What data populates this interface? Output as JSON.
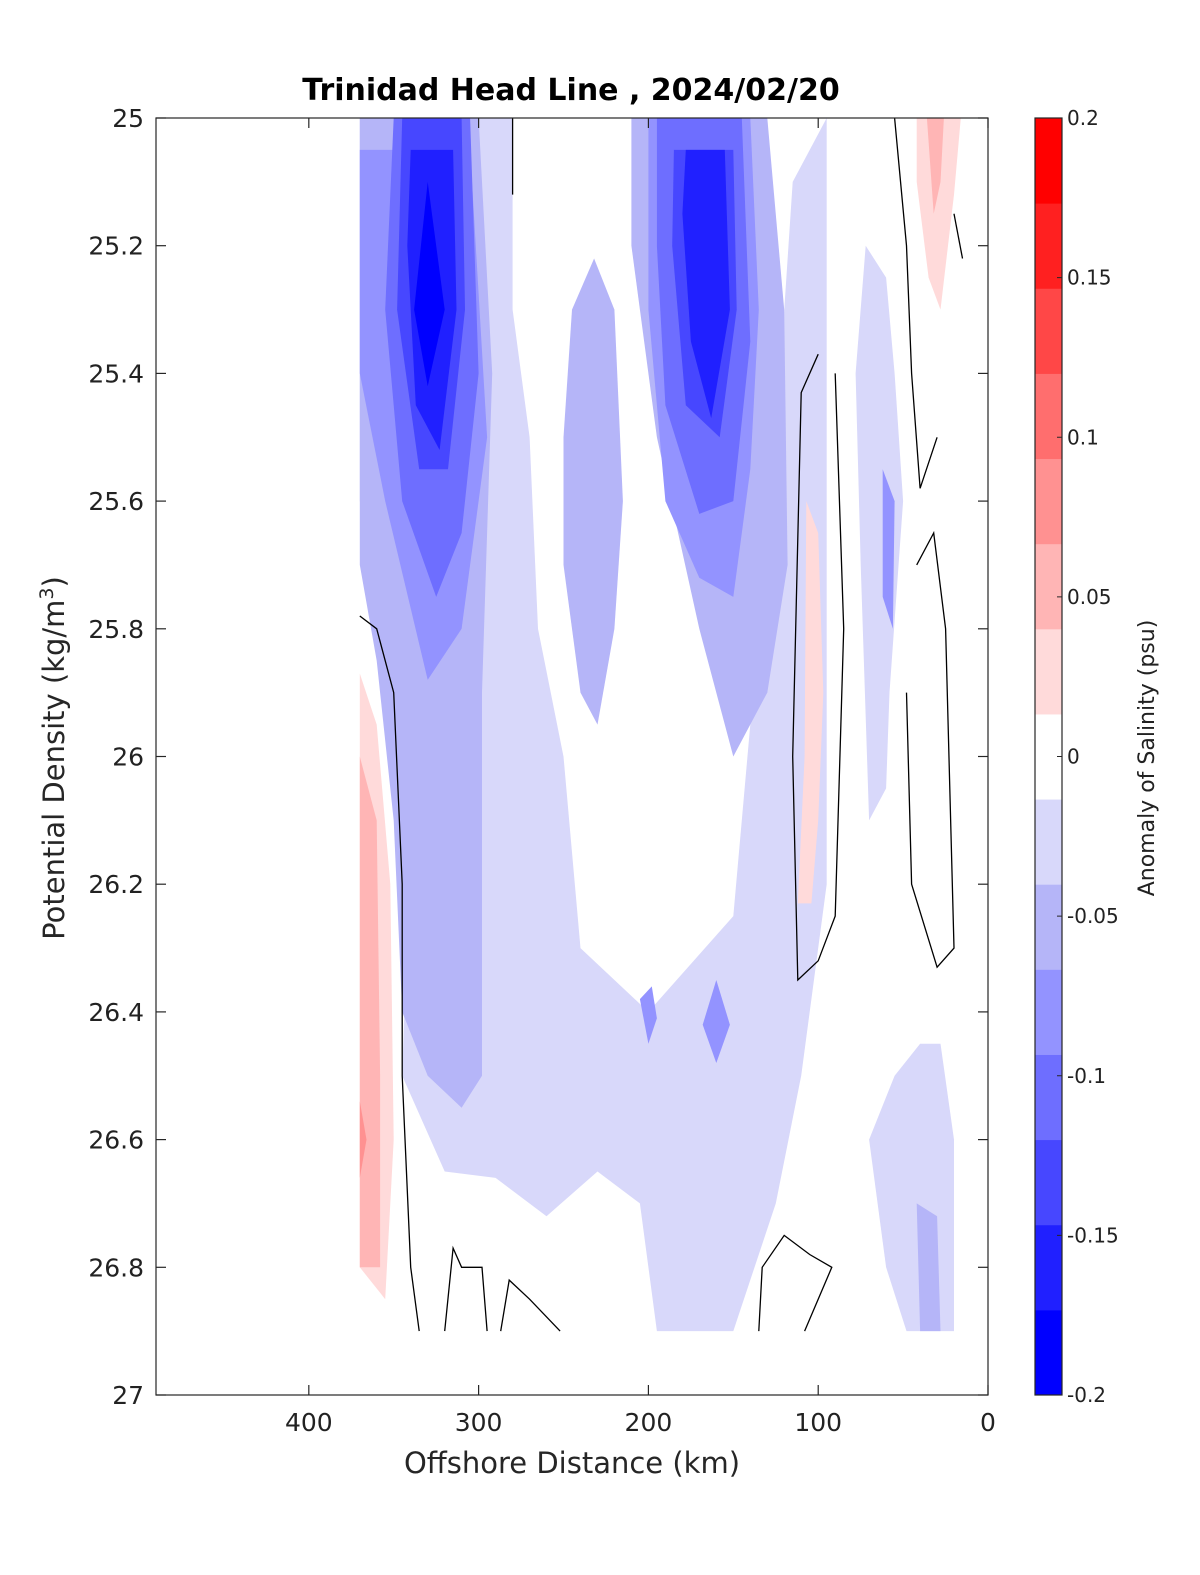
{
  "chart_data": {
    "type": "contour",
    "title": "Trinidad Head Line , 2024/02/20",
    "xlabel": "Offshore Distance (km)",
    "ylabel": "Potential Density (kg/m³)",
    "ylabel_main": "Potential Density (kg/m",
    "ylabel_sup": "3",
    "ylabel_close": ")",
    "xlim": [
      490,
      0
    ],
    "ylim": [
      25,
      27
    ],
    "y_reversed": true,
    "x_reversed": true,
    "xticks": [
      400,
      300,
      200,
      100,
      0
    ],
    "xtick_labels": [
      "400",
      "300",
      "200",
      "100",
      "0"
    ],
    "yticks": [
      25,
      25.2,
      25.4,
      25.6,
      25.8,
      26,
      26.2,
      26.4,
      26.6,
      26.8,
      27
    ],
    "ytick_labels": [
      "25",
      "25.2",
      "25.4",
      "25.6",
      "25.8",
      "26",
      "26.2",
      "26.4",
      "26.6",
      "26.8",
      "27"
    ],
    "colorbar": {
      "label": "Anomaly of Salinity (psu)",
      "range": [
        -0.2,
        0.2
      ],
      "ticks": [
        -0.2,
        -0.15,
        -0.1,
        -0.05,
        0,
        0.05,
        0.1,
        0.15,
        0.2
      ],
      "tick_labels": [
        "-0.2",
        "-0.15",
        "-0.1",
        "-0.05",
        "0",
        "0.05",
        "0.1",
        "0.15",
        "0.2"
      ],
      "level_colors": [
        "#0000ff",
        "#2020ff",
        "#4747ff",
        "#6e6eff",
        "#9393ff",
        "#b5b5f8",
        "#d8d8fa",
        "#ffffff",
        "#ffdada",
        "#ffb5b5",
        "#ff9191",
        "#ff6e6e",
        "#ff4747",
        "#ff2020",
        "#ff0000"
      ]
    },
    "contour_regions": [
      {
        "level": -0.0375,
        "color": "#d8d8fa",
        "points": [
          [
            370,
            25.0
          ],
          [
            280,
            25.0
          ],
          [
            280,
            25.3
          ],
          [
            270,
            25.5
          ],
          [
            265,
            25.8
          ],
          [
            250,
            26.0
          ],
          [
            240,
            26.3
          ],
          [
            200,
            26.4
          ],
          [
            150,
            26.25
          ],
          [
            125,
            25.5
          ],
          [
            115,
            25.1
          ],
          [
            95,
            25.0
          ],
          [
            95,
            26.2
          ],
          [
            110,
            26.5
          ],
          [
            125,
            26.7
          ],
          [
            150,
            26.9
          ],
          [
            195,
            26.9
          ],
          [
            205,
            26.7
          ],
          [
            230,
            26.65
          ],
          [
            260,
            26.72
          ],
          [
            290,
            26.66
          ],
          [
            320,
            26.65
          ],
          [
            345,
            26.5
          ],
          [
            340,
            26.1
          ],
          [
            345,
            25.9
          ],
          [
            370,
            25.6
          ]
        ]
      },
      {
        "level": -0.0375,
        "color": "#d8d8fa",
        "points": [
          [
            72,
            25.2
          ],
          [
            60,
            25.25
          ],
          [
            55,
            25.4
          ],
          [
            50,
            25.6
          ],
          [
            58,
            25.9
          ],
          [
            60,
            26.05
          ],
          [
            70,
            26.1
          ],
          [
            75,
            25.7
          ],
          [
            78,
            25.4
          ]
        ]
      },
      {
        "level": -0.0375,
        "color": "#d8d8fa",
        "points": [
          [
            40,
            26.45
          ],
          [
            28,
            26.45
          ],
          [
            20,
            26.6
          ],
          [
            20,
            26.9
          ],
          [
            48,
            26.9
          ],
          [
            60,
            26.8
          ],
          [
            70,
            26.6
          ],
          [
            55,
            26.5
          ]
        ]
      },
      {
        "level": -0.0625,
        "color": "#b5b5f8",
        "points": [
          [
            370,
            25.0
          ],
          [
            300,
            25.0
          ],
          [
            292,
            25.4
          ],
          [
            298,
            25.9
          ],
          [
            298,
            26.5
          ],
          [
            310,
            26.55
          ],
          [
            330,
            26.5
          ],
          [
            345,
            26.4
          ],
          [
            350,
            26.1
          ],
          [
            360,
            25.85
          ],
          [
            370,
            25.7
          ]
        ]
      },
      {
        "level": -0.0625,
        "color": "#b5b5f8",
        "points": [
          [
            210,
            25.0
          ],
          [
            130,
            25.0
          ],
          [
            120,
            25.3
          ],
          [
            118,
            25.7
          ],
          [
            130,
            25.9
          ],
          [
            150,
            26.0
          ],
          [
            170,
            25.8
          ],
          [
            195,
            25.5
          ],
          [
            210,
            25.2
          ]
        ]
      },
      {
        "level": -0.0625,
        "color": "#b5b5f8",
        "points": [
          [
            245,
            25.3
          ],
          [
            232,
            25.22
          ],
          [
            220,
            25.3
          ],
          [
            215,
            25.6
          ],
          [
            220,
            25.8
          ],
          [
            230,
            25.95
          ],
          [
            240,
            25.9
          ],
          [
            250,
            25.7
          ],
          [
            250,
            25.5
          ]
        ]
      },
      {
        "level": -0.0625,
        "color": "#b5b5f8",
        "points": [
          [
            42,
            26.7
          ],
          [
            30,
            26.72
          ],
          [
            28,
            26.9
          ],
          [
            40,
            26.9
          ]
        ]
      },
      {
        "level": -0.0875,
        "color": "#9393ff",
        "points": [
          [
            370,
            25.05
          ],
          [
            305,
            25.05
          ],
          [
            295,
            25.5
          ],
          [
            310,
            25.8
          ],
          [
            330,
            25.88
          ],
          [
            355,
            25.6
          ],
          [
            370,
            25.4
          ]
        ]
      },
      {
        "level": -0.0875,
        "color": "#9393ff",
        "points": [
          [
            200,
            25.0
          ],
          [
            140,
            25.0
          ],
          [
            135,
            25.3
          ],
          [
            140,
            25.55
          ],
          [
            150,
            25.75
          ],
          [
            170,
            25.72
          ],
          [
            190,
            25.6
          ],
          [
            200,
            25.3
          ]
        ]
      },
      {
        "level": -0.0875,
        "color": "#9393ff",
        "points": [
          [
            205,
            26.38
          ],
          [
            198,
            26.36
          ],
          [
            195,
            26.41
          ],
          [
            200,
            26.45
          ]
        ]
      },
      {
        "level": -0.0875,
        "color": "#9393ff",
        "points": [
          [
            160,
            26.35
          ],
          [
            152,
            26.42
          ],
          [
            160,
            26.48
          ],
          [
            168,
            26.42
          ]
        ]
      },
      {
        "level": -0.0875,
        "color": "#9393ff",
        "points": [
          [
            62,
            25.55
          ],
          [
            55,
            25.6
          ],
          [
            56,
            25.8
          ],
          [
            62,
            25.75
          ]
        ]
      },
      {
        "level": -0.1125,
        "color": "#6e6eff",
        "points": [
          [
            350,
            25.0
          ],
          [
            305,
            25.0
          ],
          [
            300,
            25.4
          ],
          [
            310,
            25.65
          ],
          [
            325,
            25.75
          ],
          [
            345,
            25.6
          ],
          [
            355,
            25.3
          ]
        ]
      },
      {
        "level": -0.1125,
        "color": "#6e6eff",
        "points": [
          [
            195,
            25.0
          ],
          [
            145,
            25.0
          ],
          [
            140,
            25.35
          ],
          [
            150,
            25.6
          ],
          [
            170,
            25.62
          ],
          [
            190,
            25.45
          ],
          [
            195,
            25.2
          ]
        ]
      },
      {
        "level": -0.1375,
        "color": "#4747ff",
        "points": [
          [
            345,
            25.0
          ],
          [
            310,
            25.0
          ],
          [
            308,
            25.3
          ],
          [
            318,
            25.55
          ],
          [
            335,
            25.55
          ],
          [
            348,
            25.3
          ]
        ]
      },
      {
        "level": -0.1375,
        "color": "#4747ff",
        "points": [
          [
            185,
            25.05
          ],
          [
            150,
            25.05
          ],
          [
            148,
            25.3
          ],
          [
            158,
            25.5
          ],
          [
            178,
            25.45
          ],
          [
            186,
            25.2
          ]
        ]
      },
      {
        "level": -0.1625,
        "color": "#2020ff",
        "points": [
          [
            340,
            25.05
          ],
          [
            315,
            25.05
          ],
          [
            313,
            25.3
          ],
          [
            323,
            25.52
          ],
          [
            337,
            25.45
          ],
          [
            342,
            25.2
          ]
        ]
      },
      {
        "level": -0.1625,
        "color": "#2020ff",
        "points": [
          [
            178,
            25.05
          ],
          [
            155,
            25.05
          ],
          [
            152,
            25.3
          ],
          [
            163,
            25.47
          ],
          [
            175,
            25.35
          ],
          [
            180,
            25.15
          ]
        ]
      },
      {
        "level": -0.1875,
        "color": "#0000ff",
        "points": [
          [
            330,
            25.1
          ],
          [
            320,
            25.3
          ],
          [
            330,
            25.42
          ],
          [
            338,
            25.3
          ]
        ]
      },
      {
        "level": 0.0375,
        "color": "#ffdada",
        "points": [
          [
            370,
            25.87
          ],
          [
            370,
            26.8
          ],
          [
            355,
            26.85
          ],
          [
            350,
            26.6
          ],
          [
            352,
            26.2
          ],
          [
            360,
            25.95
          ]
        ]
      },
      {
        "level": 0.0375,
        "color": "#ffdada",
        "points": [
          [
            107,
            25.6
          ],
          [
            100,
            25.65
          ],
          [
            97,
            25.9
          ],
          [
            100,
            26.1
          ],
          [
            104,
            26.23
          ],
          [
            112,
            26.23
          ],
          [
            108,
            26.0
          ]
        ]
      },
      {
        "level": 0.0375,
        "color": "#ffdada",
        "points": [
          [
            42,
            25.0
          ],
          [
            16,
            25.0
          ],
          [
            20,
            25.12
          ],
          [
            28,
            25.3
          ],
          [
            35,
            25.25
          ],
          [
            42,
            25.1
          ]
        ]
      },
      {
        "level": 0.0625,
        "color": "#ffb5b5",
        "points": [
          [
            370,
            26.0
          ],
          [
            370,
            26.8
          ],
          [
            358,
            26.8
          ],
          [
            358,
            26.5
          ],
          [
            360,
            26.1
          ]
        ]
      },
      {
        "level": 0.0625,
        "color": "#ffb5b5",
        "points": [
          [
            36,
            25.0
          ],
          [
            26,
            25.0
          ],
          [
            28,
            25.1
          ],
          [
            32,
            25.15
          ]
        ]
      },
      {
        "level": 0.0875,
        "color": "#ff9191",
        "points": [
          [
            370,
            26.54
          ],
          [
            366,
            26.6
          ],
          [
            370,
            26.66
          ]
        ]
      }
    ],
    "contour_lines_zero": [
      [
        [
          370,
          25.78
        ],
        [
          360,
          25.8
        ],
        [
          350,
          25.9
        ],
        [
          345,
          26.2
        ],
        [
          345,
          26.5
        ],
        [
          340,
          26.8
        ],
        [
          335,
          26.9
        ]
      ],
      [
        [
          280,
          25.0
        ],
        [
          280,
          25.12
        ]
      ],
      [
        [
          320,
          26.9
        ],
        [
          315,
          26.77
        ],
        [
          310,
          26.8
        ],
        [
          298,
          26.8
        ],
        [
          295,
          26.9
        ]
      ],
      [
        [
          287,
          26.9
        ],
        [
          282,
          26.82
        ],
        [
          270,
          26.85
        ],
        [
          252,
          26.9
        ]
      ],
      [
        [
          100,
          25.37
        ],
        [
          110,
          25.43
        ],
        [
          115,
          26.0
        ],
        [
          112,
          26.35
        ],
        [
          100,
          26.32
        ],
        [
          90,
          26.25
        ],
        [
          85,
          25.8
        ],
        [
          90,
          25.4
        ]
      ],
      [
        [
          135,
          26.9
        ],
        [
          133,
          26.8
        ],
        [
          120,
          26.75
        ],
        [
          105,
          26.78
        ],
        [
          92,
          26.8
        ],
        [
          108,
          26.9
        ]
      ],
      [
        [
          55,
          25.0
        ],
        [
          48,
          25.2
        ],
        [
          45,
          25.4
        ],
        [
          40,
          25.58
        ],
        [
          30,
          25.5
        ]
      ],
      [
        [
          20,
          25.15
        ],
        [
          15,
          25.22
        ]
      ],
      [
        [
          42,
          25.7
        ],
        [
          32,
          25.65
        ],
        [
          25,
          25.8
        ],
        [
          20,
          26.3
        ],
        [
          30,
          26.33
        ],
        [
          45,
          26.2
        ],
        [
          48,
          25.9
        ]
      ]
    ]
  }
}
